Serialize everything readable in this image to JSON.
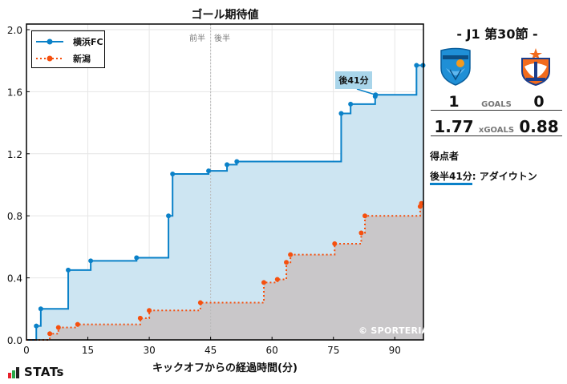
{
  "chart_title": "ゴール期待値",
  "x_axis_label": "キックオフからの経過時間(分)",
  "half_labels": {
    "first": "前半",
    "second": "後半"
  },
  "watermark": "© SPORTERIA",
  "brand": "STATs",
  "annotation": {
    "label": "後41分",
    "team": "横浜FC",
    "minute": 85.3,
    "value": 1.58
  },
  "colors": {
    "home": "#0a81c8",
    "away": "#f5500f",
    "home_fill": "#cde5f2",
    "away_fill": "#c9c7c9",
    "callout_bg": "#a9d5ea"
  },
  "match": {
    "round": "- J1 第30節 -",
    "home_team": "横浜FC",
    "away_team": "新潟",
    "home_crest": "yokohama-fc-crest",
    "away_crest": "albirex-niigata-crest",
    "goals_label": "GOALS",
    "xgoals_label": "xGOALS",
    "home_goals": "1",
    "away_goals": "0",
    "home_xg": "1.77",
    "away_xg": "0.88"
  },
  "scorers": {
    "title": "得点者",
    "items": [
      {
        "time": "後半41分",
        "sep": ": ",
        "player": "アダイウトン"
      }
    ]
  },
  "chart_data": {
    "type": "line",
    "step": true,
    "title": "ゴール期待値",
    "xlabel": "キックオフからの経過時間(分)",
    "ylabel": "",
    "xlim": [
      0,
      97
    ],
    "ylim": [
      0,
      2.0
    ],
    "x_ticks": [
      0,
      15,
      30,
      45,
      60,
      75,
      90
    ],
    "y_ticks": [
      0.0,
      0.4,
      0.8,
      1.2,
      1.6,
      2.0
    ],
    "y_tick_labels": [
      "0.0",
      "0.4",
      "0.8",
      "1.2",
      "1.6",
      "2.0"
    ],
    "grid": true,
    "legend_position": "upper left",
    "halftime_line": 45,
    "series": [
      {
        "name": "横浜FC",
        "style": "solid",
        "points": [
          [
            2.4,
            0.09
          ],
          [
            3.5,
            0.2
          ],
          [
            10.2,
            0.45
          ],
          [
            15.7,
            0.51
          ],
          [
            26.9,
            0.53
          ],
          [
            34.7,
            0.8
          ],
          [
            35.7,
            1.07
          ],
          [
            44.5,
            1.09
          ],
          [
            49.0,
            1.13
          ],
          [
            51.4,
            1.15
          ],
          [
            76.9,
            1.46
          ],
          [
            79.2,
            1.52
          ],
          [
            85.2,
            1.57
          ],
          [
            85.3,
            1.58
          ],
          [
            95.3,
            1.77
          ],
          [
            96.9,
            1.77
          ]
        ]
      },
      {
        "name": "新潟",
        "style": "dotted",
        "points": [
          [
            5.7,
            0.04
          ],
          [
            7.8,
            0.08
          ],
          [
            12.5,
            0.1
          ],
          [
            27.8,
            0.14
          ],
          [
            30.0,
            0.19
          ],
          [
            42.5,
            0.24
          ],
          [
            58.0,
            0.37
          ],
          [
            61.3,
            0.39
          ],
          [
            63.5,
            0.5
          ],
          [
            64.5,
            0.55
          ],
          [
            75.3,
            0.62
          ],
          [
            81.8,
            0.69
          ],
          [
            82.7,
            0.8
          ],
          [
            96.2,
            0.86
          ],
          [
            96.5,
            0.88
          ]
        ]
      }
    ]
  }
}
